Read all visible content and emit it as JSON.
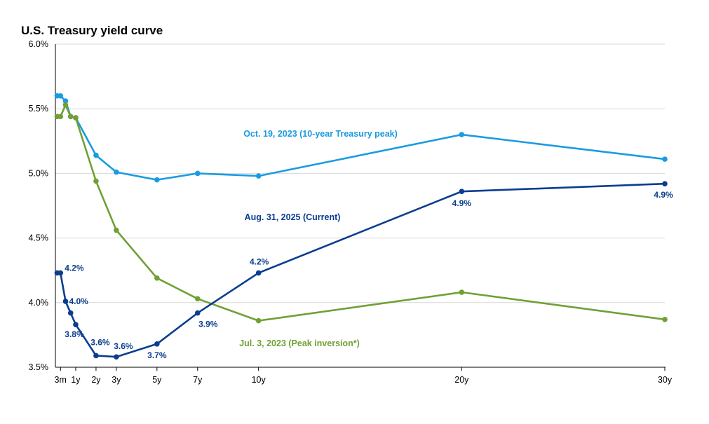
{
  "chart_data": {
    "type": "line",
    "title": "U.S. Treasury yield curve",
    "xlabel": "",
    "ylabel": "",
    "ylim": [
      3.5,
      6.0
    ],
    "yticks": [
      "3.5%",
      "4.0%",
      "4.5%",
      "5.0%",
      "5.5%",
      "6.0%"
    ],
    "y_tick_values": [
      3.5,
      4.0,
      4.5,
      5.0,
      5.5,
      6.0
    ],
    "x_axis_unit": "years to maturity",
    "xlim": [
      0,
      30
    ],
    "x_tick_labels": [
      "3m",
      "1y",
      "2y",
      "3y",
      "5y",
      "7y",
      "10y",
      "20y",
      "30y"
    ],
    "x_tick_values": [
      0.25,
      1,
      2,
      3,
      5,
      7,
      10,
      20,
      30
    ],
    "grid": "horizontal",
    "series": [
      {
        "name": "Oct. 19, 2023 (10-year Treasury peak)",
        "color": "#1a9be0",
        "x": [
          0.083,
          0.25,
          0.5,
          0.75,
          1,
          2,
          3,
          5,
          7,
          10,
          20,
          30
        ],
        "y": [
          5.6,
          5.6,
          5.56,
          5.44,
          5.43,
          5.14,
          5.01,
          4.95,
          5.0,
          4.98,
          5.3,
          5.11
        ]
      },
      {
        "name": "Jul. 3, 2023 (Peak inversion*)",
        "color": "#70a035",
        "x": [
          0.083,
          0.25,
          0.5,
          0.75,
          1,
          2,
          3,
          5,
          7,
          10,
          20,
          30
        ],
        "y": [
          5.44,
          5.44,
          5.53,
          5.44,
          5.43,
          4.94,
          4.56,
          4.19,
          4.03,
          3.86,
          4.08,
          3.87
        ]
      },
      {
        "name": "Aug. 31, 2025 (Current)",
        "color": "#0a3d8f",
        "x": [
          0.083,
          0.25,
          0.5,
          0.75,
          1,
          2,
          3,
          5,
          7,
          10,
          20,
          30
        ],
        "y": [
          4.23,
          4.23,
          4.01,
          3.92,
          3.83,
          3.59,
          3.58,
          3.68,
          3.92,
          4.23,
          4.86,
          4.92
        ],
        "data_labels": [
          {
            "x": 0.25,
            "text": "4.2%"
          },
          {
            "x": 0.5,
            "text": "4.0%"
          },
          {
            "x": 1,
            "text": "3.8%"
          },
          {
            "x": 2,
            "text": "3.6%"
          },
          {
            "x": 3,
            "text": "3.6%"
          },
          {
            "x": 5,
            "text": "3.7%"
          },
          {
            "x": 7,
            "text": "3.9%"
          },
          {
            "x": 10,
            "text": "4.2%"
          },
          {
            "x": 20,
            "text": "4.9%"
          },
          {
            "x": 30,
            "text": "4.9%"
          }
        ]
      }
    ]
  }
}
